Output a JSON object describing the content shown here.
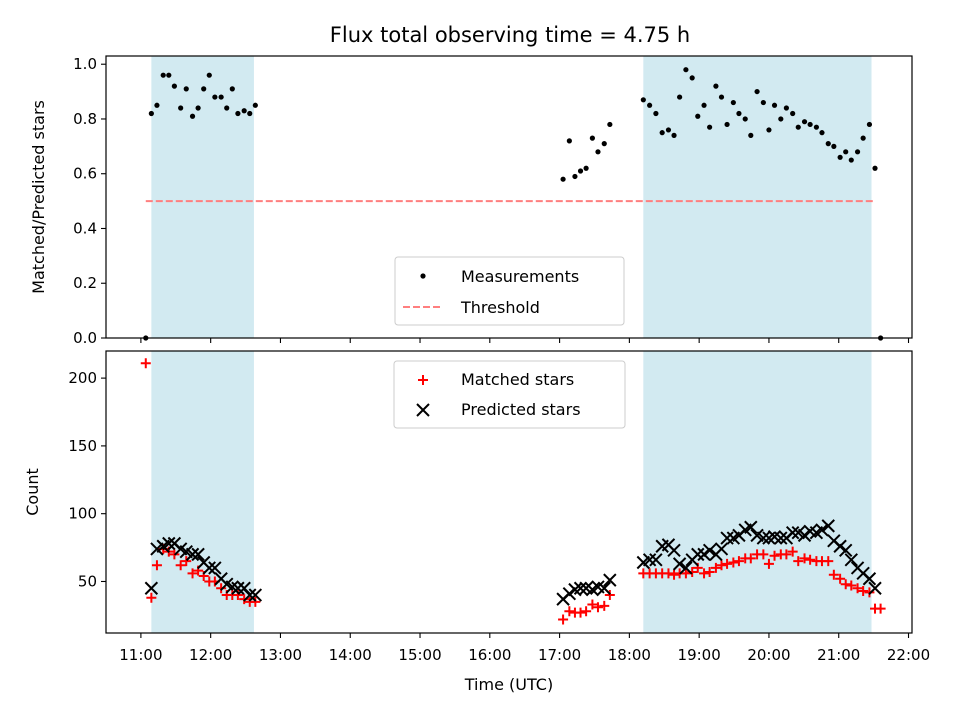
{
  "chart_data": {
    "title": "Flux total observing time = 4.75 h",
    "xlabel": "Time (UTC)",
    "x_unit": "hours UTC",
    "xlim": [
      10.5,
      22.05
    ],
    "x_tick_values": [
      11,
      12,
      13,
      14,
      15,
      16,
      17,
      18,
      19,
      20,
      21,
      22
    ],
    "x_tick_labels": [
      "11:00",
      "12:00",
      "13:00",
      "14:00",
      "15:00",
      "16:00",
      "17:00",
      "18:00",
      "19:00",
      "20:00",
      "21:00",
      "22:00"
    ],
    "colors": {
      "shade": "#add8e6",
      "measure": "#000000",
      "threshold": "#ff7f7f",
      "matched": "#ff0000",
      "predicted": "#000000"
    },
    "shaded_intervals": [
      [
        11.15,
        12.62
      ],
      [
        18.2,
        21.47
      ]
    ],
    "panels": [
      {
        "type": "scatter",
        "ylabel": "Matched/Predicted stars",
        "ylim": [
          0,
          1.03
        ],
        "y_tick_values": [
          0,
          0.2,
          0.4,
          0.6,
          0.8,
          1.0
        ],
        "y_tick_labels": [
          "0.0",
          "0.2",
          "0.4",
          "0.6",
          "0.8",
          "1.0"
        ],
        "legend_position": "bottom-center",
        "threshold": {
          "name": "Threshold",
          "value": 0.5,
          "x_range": [
            11.07,
            21.53
          ]
        },
        "series": [
          {
            "name": "Measurements",
            "marker": "dot",
            "points": [
              [
                11.07,
                0.0
              ],
              [
                11.15,
                0.82
              ],
              [
                11.23,
                0.85
              ],
              [
                11.32,
                0.96
              ],
              [
                11.4,
                0.96
              ],
              [
                11.48,
                0.92
              ],
              [
                11.57,
                0.84
              ],
              [
                11.65,
                0.91
              ],
              [
                11.74,
                0.81
              ],
              [
                11.82,
                0.84
              ],
              [
                11.9,
                0.91
              ],
              [
                11.98,
                0.96
              ],
              [
                12.06,
                0.88
              ],
              [
                12.15,
                0.88
              ],
              [
                12.23,
                0.84
              ],
              [
                12.31,
                0.91
              ],
              [
                12.39,
                0.82
              ],
              [
                12.48,
                0.83
              ],
              [
                12.56,
                0.82
              ],
              [
                12.64,
                0.85
              ],
              [
                17.05,
                0.58
              ],
              [
                17.14,
                0.72
              ],
              [
                17.22,
                0.59
              ],
              [
                17.3,
                0.61
              ],
              [
                17.38,
                0.62
              ],
              [
                17.47,
                0.73
              ],
              [
                17.55,
                0.68
              ],
              [
                17.64,
                0.71
              ],
              [
                17.72,
                0.78
              ],
              [
                18.2,
                0.87
              ],
              [
                18.29,
                0.85
              ],
              [
                18.38,
                0.82
              ],
              [
                18.47,
                0.75
              ],
              [
                18.56,
                0.76
              ],
              [
                18.64,
                0.74
              ],
              [
                18.72,
                0.88
              ],
              [
                18.81,
                0.98
              ],
              [
                18.9,
                0.95
              ],
              [
                18.98,
                0.81
              ],
              [
                19.07,
                0.85
              ],
              [
                19.15,
                0.77
              ],
              [
                19.24,
                0.92
              ],
              [
                19.32,
                0.88
              ],
              [
                19.4,
                0.78
              ],
              [
                19.49,
                0.86
              ],
              [
                19.57,
                0.82
              ],
              [
                19.66,
                0.8
              ],
              [
                19.74,
                0.74
              ],
              [
                19.83,
                0.9
              ],
              [
                19.92,
                0.86
              ],
              [
                20.0,
                0.76
              ],
              [
                20.08,
                0.85
              ],
              [
                20.17,
                0.8
              ],
              [
                20.25,
                0.84
              ],
              [
                20.34,
                0.82
              ],
              [
                20.42,
                0.77
              ],
              [
                20.51,
                0.79
              ],
              [
                20.59,
                0.78
              ],
              [
                20.68,
                0.77
              ],
              [
                20.76,
                0.75
              ],
              [
                20.85,
                0.71
              ],
              [
                20.93,
                0.7
              ],
              [
                21.02,
                0.66
              ],
              [
                21.1,
                0.68
              ],
              [
                21.18,
                0.65
              ],
              [
                21.27,
                0.68
              ],
              [
                21.35,
                0.73
              ],
              [
                21.44,
                0.78
              ],
              [
                21.52,
                0.62
              ],
              [
                21.6,
                0.0
              ]
            ]
          }
        ]
      },
      {
        "type": "scatter",
        "ylabel": "Count",
        "ylim": [
          12,
          220
        ],
        "y_tick_values": [
          50,
          100,
          150,
          200
        ],
        "y_tick_labels": [
          "50",
          "100",
          "150",
          "200"
        ],
        "legend_position": "top-center",
        "series": [
          {
            "name": "Matched stars",
            "marker": "plus",
            "points": [
              [
                11.07,
                211
              ],
              [
                11.15,
                38
              ],
              [
                11.23,
                62
              ],
              [
                11.32,
                74
              ],
              [
                11.4,
                72
              ],
              [
                11.48,
                70
              ],
              [
                11.57,
                62
              ],
              [
                11.65,
                65
              ],
              [
                11.74,
                56
              ],
              [
                11.82,
                58
              ],
              [
                11.9,
                54
              ],
              [
                11.98,
                50
              ],
              [
                12.06,
                50
              ],
              [
                12.15,
                45
              ],
              [
                12.23,
                40
              ],
              [
                12.31,
                40
              ],
              [
                12.39,
                40
              ],
              [
                12.48,
                37
              ],
              [
                12.56,
                35
              ],
              [
                12.64,
                35
              ],
              [
                17.05,
                22
              ],
              [
                17.14,
                28
              ],
              [
                17.22,
                27
              ],
              [
                17.3,
                27
              ],
              [
                17.38,
                28
              ],
              [
                17.47,
                33
              ],
              [
                17.55,
                31
              ],
              [
                17.64,
                32
              ],
              [
                17.72,
                40
              ],
              [
                18.2,
                56
              ],
              [
                18.29,
                56
              ],
              [
                18.38,
                56
              ],
              [
                18.47,
                56
              ],
              [
                18.56,
                56
              ],
              [
                18.64,
                55
              ],
              [
                18.72,
                56
              ],
              [
                18.81,
                56
              ],
              [
                18.9,
                57
              ],
              [
                18.98,
                60
              ],
              [
                19.07,
                56
              ],
              [
                19.15,
                57
              ],
              [
                19.24,
                60
              ],
              [
                19.32,
                62
              ],
              [
                19.4,
                63
              ],
              [
                19.49,
                64
              ],
              [
                19.57,
                65
              ],
              [
                19.66,
                67
              ],
              [
                19.74,
                67
              ],
              [
                19.83,
                70
              ],
              [
                19.92,
                70
              ],
              [
                20.0,
                63
              ],
              [
                20.08,
                69
              ],
              [
                20.17,
                70
              ],
              [
                20.25,
                70
              ],
              [
                20.34,
                72
              ],
              [
                20.42,
                65
              ],
              [
                20.51,
                67
              ],
              [
                20.59,
                66
              ],
              [
                20.68,
                65
              ],
              [
                20.76,
                65
              ],
              [
                20.85,
                65
              ],
              [
                20.93,
                55
              ],
              [
                21.02,
                52
              ],
              [
                21.1,
                48
              ],
              [
                21.18,
                47
              ],
              [
                21.27,
                45
              ],
              [
                21.35,
                43
              ],
              [
                21.44,
                42
              ],
              [
                21.52,
                30
              ],
              [
                21.6,
                30
              ]
            ]
          },
          {
            "name": "Predicted stars",
            "marker": "x",
            "points": [
              [
                11.15,
                45
              ],
              [
                11.23,
                74
              ],
              [
                11.32,
                76
              ],
              [
                11.4,
                78
              ],
              [
                11.48,
                78
              ],
              [
                11.57,
                74
              ],
              [
                11.65,
                72
              ],
              [
                11.74,
                70
              ],
              [
                11.82,
                70
              ],
              [
                11.9,
                64
              ],
              [
                11.98,
                60
              ],
              [
                12.06,
                60
              ],
              [
                12.15,
                52
              ],
              [
                12.23,
                48
              ],
              [
                12.31,
                46
              ],
              [
                12.39,
                45
              ],
              [
                12.48,
                45
              ],
              [
                12.56,
                40
              ],
              [
                12.64,
                40
              ],
              [
                17.05,
                37
              ],
              [
                17.14,
                41
              ],
              [
                17.22,
                44
              ],
              [
                17.3,
                45
              ],
              [
                17.38,
                45
              ],
              [
                17.47,
                44
              ],
              [
                17.55,
                46
              ],
              [
                17.64,
                45
              ],
              [
                17.72,
                51
              ],
              [
                18.2,
                64
              ],
              [
                18.29,
                66
              ],
              [
                18.38,
                66
              ],
              [
                18.47,
                76
              ],
              [
                18.56,
                77
              ],
              [
                18.64,
                73
              ],
              [
                18.72,
                63
              ],
              [
                18.81,
                60
              ],
              [
                18.9,
                66
              ],
              [
                18.98,
                70
              ],
              [
                19.07,
                70
              ],
              [
                19.15,
                73
              ],
              [
                19.24,
                70
              ],
              [
                19.32,
                74
              ],
              [
                19.4,
                82
              ],
              [
                19.49,
                82
              ],
              [
                19.57,
                84
              ],
              [
                19.66,
                88
              ],
              [
                19.74,
                90
              ],
              [
                19.83,
                84
              ],
              [
                19.92,
                82
              ],
              [
                20.0,
                82
              ],
              [
                20.08,
                83
              ],
              [
                20.17,
                82
              ],
              [
                20.25,
                82
              ],
              [
                20.34,
                86
              ],
              [
                20.42,
                86
              ],
              [
                20.51,
                84
              ],
              [
                20.59,
                87
              ],
              [
                20.68,
                86
              ],
              [
                20.76,
                88
              ],
              [
                20.85,
                91
              ],
              [
                20.93,
                80
              ],
              [
                21.02,
                76
              ],
              [
                21.1,
                73
              ],
              [
                21.18,
                66
              ],
              [
                21.27,
                60
              ],
              [
                21.35,
                56
              ],
              [
                21.44,
                52
              ],
              [
                21.52,
                45
              ]
            ]
          }
        ]
      }
    ]
  }
}
